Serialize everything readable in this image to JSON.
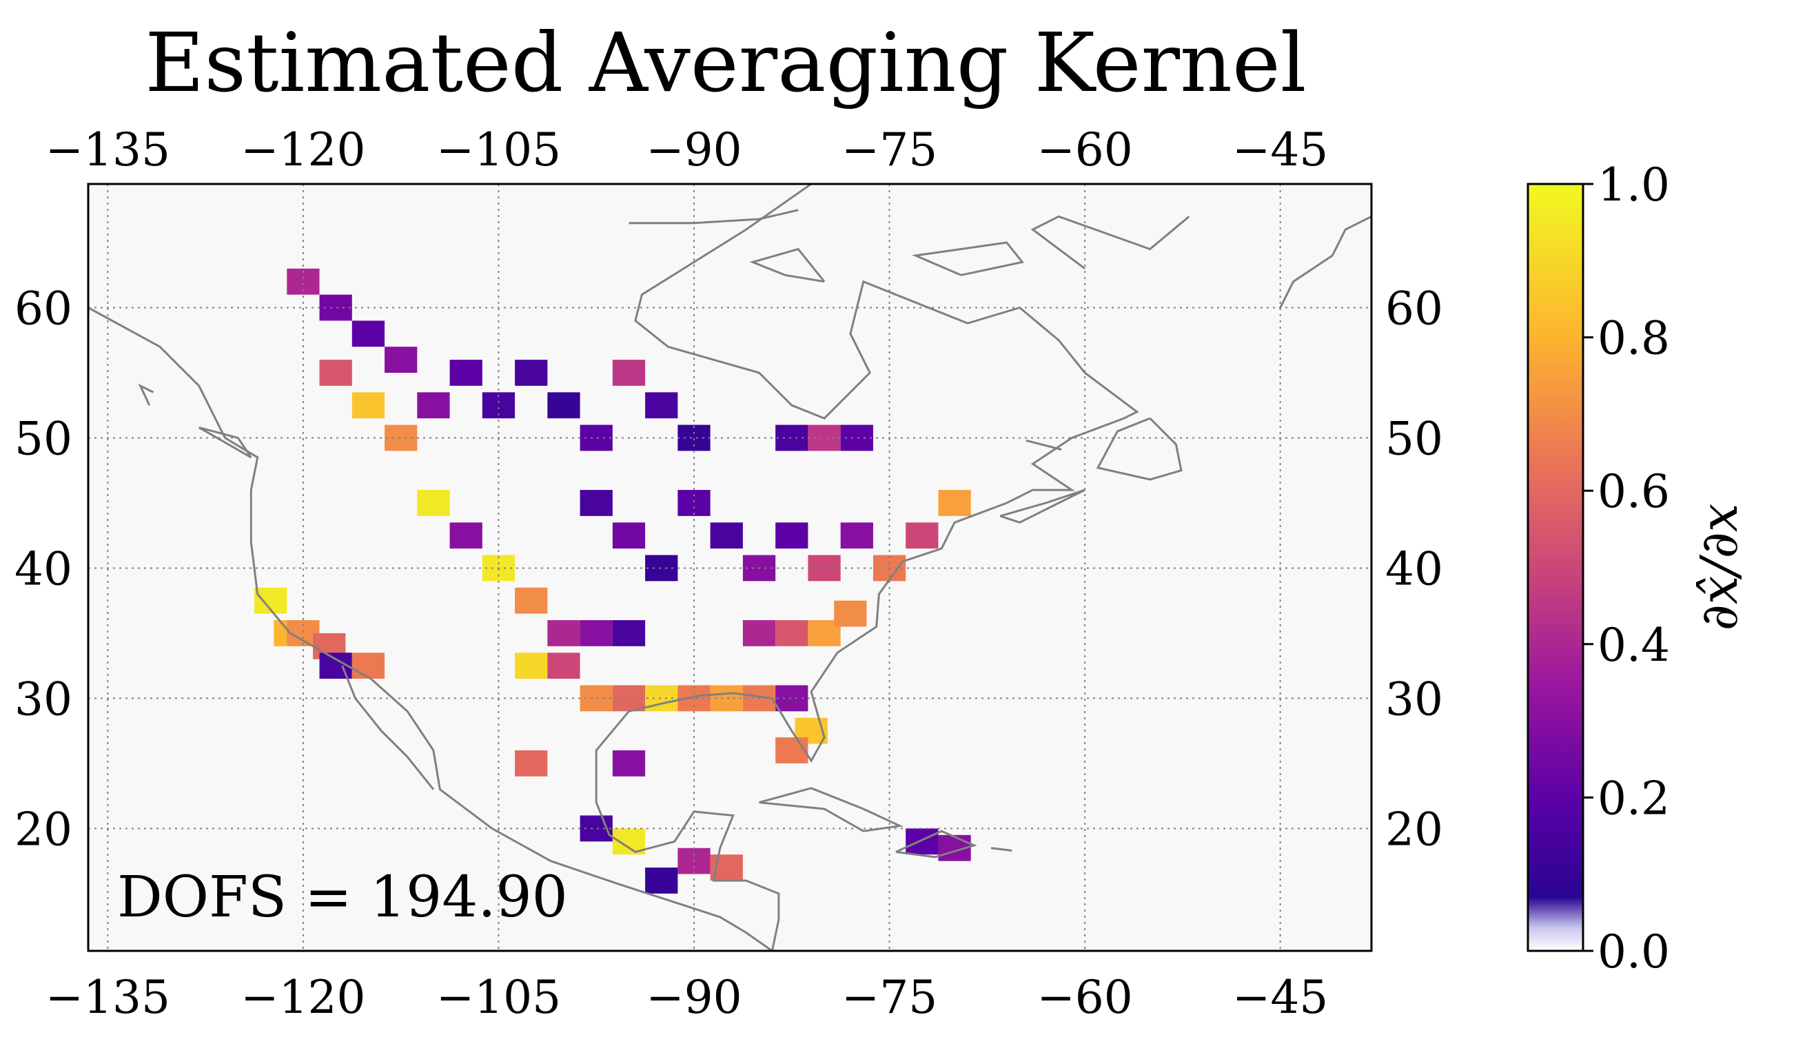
{
  "figure": {
    "title": "Estimated Averaging Kernel",
    "annotation": "DOFS = 194.90"
  },
  "colorbar": {
    "label": "∂x̂/∂x",
    "ticks": [
      "0.0",
      "0.2",
      "0.4",
      "0.6",
      "0.8",
      "1.0"
    ],
    "range": [
      0.0,
      1.0
    ],
    "colormap": "plasma (with white-faded low end)"
  },
  "map": {
    "projection": "PlateCarree",
    "lon_ticks": [
      "−135",
      "−120",
      "−105",
      "−90",
      "−75",
      "−60",
      "−45"
    ],
    "lat_ticks": [
      "20",
      "30",
      "40",
      "50",
      "60"
    ],
    "lon_range": [
      -136.5,
      -38.0
    ],
    "lat_range": [
      10.6,
      69.5
    ],
    "grid": "dotted",
    "coastline_color": "#808080",
    "background_color": "#f8f8f8"
  },
  "chart_data": {
    "type": "heatmap",
    "title": "Estimated Averaging Kernel",
    "xlabel": "",
    "ylabel": "",
    "colorbar_label": "∂x̂/∂x",
    "xlim": [
      -136.5,
      -38.0
    ],
    "ylim": [
      10.6,
      69.5
    ],
    "zlim": [
      0.0,
      1.0
    ],
    "annotation": "DOFS = 194.90",
    "cell_size_deg": [
      2.0,
      2.5
    ],
    "cells": [
      [
        -120.0,
        62.0,
        0.4
      ],
      [
        -117.5,
        60.0,
        0.25
      ],
      [
        -115.0,
        58.0,
        0.2
      ],
      [
        -112.5,
        56.0,
        0.3
      ],
      [
        -117.5,
        55.0,
        0.55
      ],
      [
        -115.0,
        52.5,
        0.85
      ],
      [
        -112.5,
        50.0,
        0.7
      ],
      [
        -110.0,
        52.5,
        0.3
      ],
      [
        -107.5,
        55.0,
        0.2
      ],
      [
        -105.0,
        52.5,
        0.15
      ],
      [
        -102.5,
        55.0,
        0.15
      ],
      [
        -100.0,
        52.5,
        0.1
      ],
      [
        -97.5,
        50.0,
        0.2
      ],
      [
        -95.0,
        55.0,
        0.45
      ],
      [
        -92.5,
        52.5,
        0.15
      ],
      [
        -90.0,
        50.0,
        0.1
      ],
      [
        -82.5,
        50.0,
        0.15
      ],
      [
        -80.0,
        50.0,
        0.45
      ],
      [
        -77.5,
        50.0,
        0.2
      ],
      [
        -97.5,
        45.0,
        0.15
      ],
      [
        -95.0,
        42.5,
        0.25
      ],
      [
        -92.5,
        40.0,
        0.1
      ],
      [
        -90.0,
        45.0,
        0.2
      ],
      [
        -87.5,
        42.5,
        0.15
      ],
      [
        -85.0,
        40.0,
        0.3
      ],
      [
        -82.5,
        42.5,
        0.2
      ],
      [
        -80.0,
        40.0,
        0.5
      ],
      [
        -77.5,
        42.5,
        0.3
      ],
      [
        -75.0,
        40.0,
        0.65
      ],
      [
        -72.5,
        42.5,
        0.5
      ],
      [
        -70.0,
        45.0,
        0.75
      ],
      [
        -105.0,
        40.0,
        0.95
      ],
      [
        -107.5,
        42.5,
        0.3
      ],
      [
        -110.0,
        45.0,
        0.95
      ],
      [
        -122.5,
        37.5,
        0.95
      ],
      [
        -121.0,
        35.0,
        0.8
      ],
      [
        -120.0,
        35.0,
        0.7
      ],
      [
        -118.0,
        34.0,
        0.6
      ],
      [
        -117.5,
        32.5,
        0.15
      ],
      [
        -115.0,
        32.5,
        0.65
      ],
      [
        -102.5,
        32.5,
        0.9
      ],
      [
        -100.0,
        32.5,
        0.5
      ],
      [
        -97.5,
        30.0,
        0.7
      ],
      [
        -95.0,
        30.0,
        0.6
      ],
      [
        -92.5,
        30.0,
        0.9
      ],
      [
        -90.0,
        30.0,
        0.65
      ],
      [
        -87.5,
        30.0,
        0.75
      ],
      [
        -85.0,
        30.0,
        0.65
      ],
      [
        -82.5,
        30.0,
        0.3
      ],
      [
        -81.0,
        27.5,
        0.85
      ],
      [
        -82.5,
        26.0,
        0.65
      ],
      [
        -102.5,
        37.5,
        0.7
      ],
      [
        -100.0,
        35.0,
        0.4
      ],
      [
        -97.5,
        35.0,
        0.3
      ],
      [
        -95.0,
        35.0,
        0.15
      ],
      [
        -85.0,
        35.0,
        0.4
      ],
      [
        -82.5,
        35.0,
        0.55
      ],
      [
        -80.0,
        35.0,
        0.75
      ],
      [
        -78.0,
        36.5,
        0.7
      ],
      [
        -97.5,
        20.0,
        0.15
      ],
      [
        -95.0,
        19.0,
        0.95
      ],
      [
        -90.0,
        17.5,
        0.4
      ],
      [
        -87.5,
        17.0,
        0.6
      ],
      [
        -92.5,
        16.0,
        0.1
      ],
      [
        -72.5,
        19.0,
        0.2
      ],
      [
        -70.0,
        18.5,
        0.3
      ],
      [
        -102.5,
        25.0,
        0.6
      ],
      [
        -95.0,
        25.0,
        0.3
      ]
    ]
  }
}
